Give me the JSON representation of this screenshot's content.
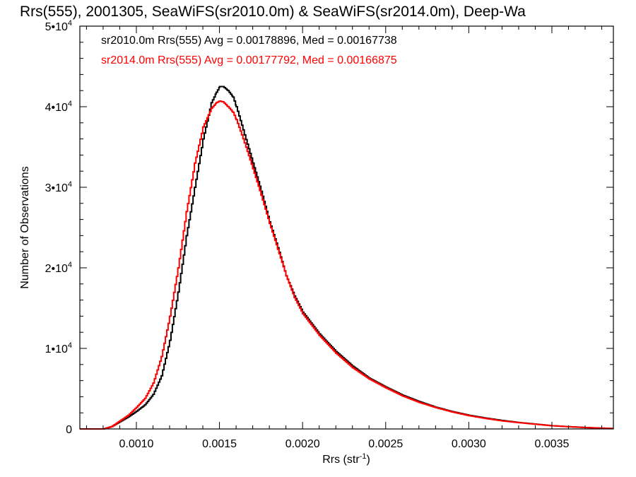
{
  "chart_data": {
    "type": "line",
    "step": true,
    "title": "Rrs(555), 2001305, SeaWiFS(sr2010.0m) & SeaWiFS(sr2014.0m), Deep-Wa",
    "xlabel": "Rrs (str",
    "xlabel_sup": "-1",
    "xlabel_end": ")",
    "ylabel": "Number of Observations",
    "xlim": [
      0.00066,
      0.00387
    ],
    "ylim": [
      0,
      50000
    ],
    "grid": false,
    "xticks": [
      {
        "value": 0.001,
        "label": "0.0010"
      },
      {
        "value": 0.0015,
        "label": "0.0015"
      },
      {
        "value": 0.002,
        "label": "0.0020"
      },
      {
        "value": 0.0025,
        "label": "0.0025"
      },
      {
        "value": 0.003,
        "label": "0.0030"
      },
      {
        "value": 0.0035,
        "label": "0.0035"
      }
    ],
    "yticks": [
      {
        "value": 0,
        "base": "0",
        "exp": ""
      },
      {
        "value": 10000,
        "base": "1•10",
        "exp": "4"
      },
      {
        "value": 20000,
        "base": "2•10",
        "exp": "4"
      },
      {
        "value": 30000,
        "base": "3•10",
        "exp": "4"
      },
      {
        "value": 40000,
        "base": "4•10",
        "exp": "4"
      },
      {
        "value": 50000,
        "base": "5•10",
        "exp": "4"
      }
    ],
    "legend": [
      {
        "text": "sr2010.0m Rrs(555) Avg = 0.00178896, Med = 0.00167738",
        "color": "#000000"
      },
      {
        "text": "sr2014.0m Rrs(555) Avg = 0.00177792, Med = 0.00166875",
        "color": "#ff0000"
      }
    ],
    "series": [
      {
        "color": "#000000",
        "x": [
          0.00066,
          0.0008,
          0.00085,
          0.0009,
          0.00095,
          0.001,
          0.00105,
          0.0011,
          0.00115,
          0.0012,
          0.00125,
          0.0013,
          0.00135,
          0.0014,
          0.00145,
          0.00148,
          0.0015,
          0.00152,
          0.00155,
          0.00158,
          0.0016,
          0.00165,
          0.0017,
          0.00175,
          0.0018,
          0.00185,
          0.0019,
          0.00195,
          0.002,
          0.0021,
          0.0022,
          0.0023,
          0.0024,
          0.0025,
          0.0026,
          0.0027,
          0.0028,
          0.0029,
          0.003,
          0.0031,
          0.0032,
          0.0033,
          0.0034,
          0.0035,
          0.0036,
          0.0037,
          0.0038,
          0.00387
        ],
        "y": [
          0,
          0,
          300,
          900,
          1500,
          2200,
          3000,
          4300,
          6600,
          11000,
          17000,
          24000,
          30000,
          36000,
          40500,
          41800,
          42500,
          42500,
          42000,
          41200,
          40000,
          36500,
          33000,
          29500,
          25700,
          22500,
          19000,
          16500,
          14500,
          11800,
          9600,
          7800,
          6300,
          5200,
          4200,
          3400,
          2700,
          2150,
          1700,
          1350,
          1050,
          800,
          600,
          400,
          280,
          180,
          100,
          50
        ]
      },
      {
        "color": "#ff0000",
        "x": [
          0.00066,
          0.0008,
          0.00085,
          0.0009,
          0.00095,
          0.001,
          0.00105,
          0.0011,
          0.00115,
          0.0012,
          0.00125,
          0.0013,
          0.00135,
          0.0014,
          0.00145,
          0.00148,
          0.0015,
          0.00152,
          0.00155,
          0.00158,
          0.0016,
          0.00165,
          0.0017,
          0.00175,
          0.0018,
          0.00185,
          0.0019,
          0.00195,
          0.002,
          0.0021,
          0.0022,
          0.0023,
          0.0024,
          0.0025,
          0.0026,
          0.0027,
          0.0028,
          0.0029,
          0.003,
          0.0031,
          0.0032,
          0.0033,
          0.0034,
          0.0035,
          0.0036,
          0.0037,
          0.0038,
          0.00387
        ],
        "y": [
          0,
          0,
          300,
          1000,
          1700,
          2700,
          3800,
          5700,
          9000,
          14000,
          20000,
          27000,
          33000,
          37500,
          39800,
          40500,
          40700,
          40600,
          40000,
          39300,
          38400,
          35500,
          32300,
          29000,
          25500,
          22300,
          19000,
          16300,
          14300,
          11600,
          9400,
          7600,
          6200,
          5100,
          4100,
          3300,
          2650,
          2100,
          1650,
          1300,
          1000,
          780,
          580,
          400,
          270,
          170,
          100,
          50
        ]
      }
    ]
  }
}
